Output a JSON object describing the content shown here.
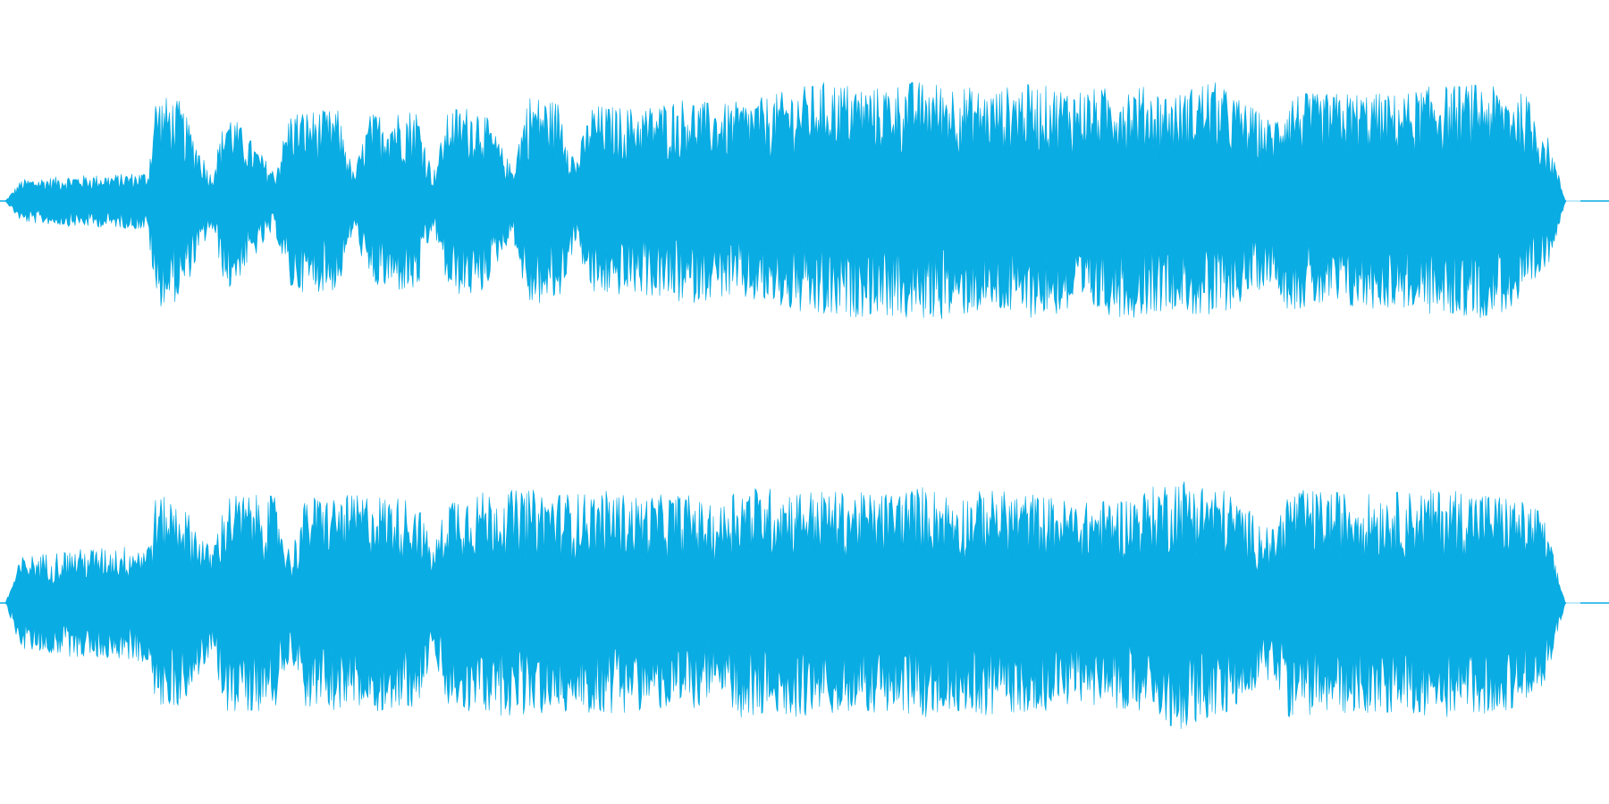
{
  "waveform": {
    "color": "#09ACE3",
    "background": "#FFFFFF",
    "channels": [
      {
        "name": "top",
        "envelope": [
          [
            0.0,
            0.0
          ],
          [
            0.01,
            0.16
          ],
          [
            0.04,
            0.19
          ],
          [
            0.07,
            0.2
          ],
          [
            0.09,
            0.22
          ],
          [
            0.095,
            0.8
          ],
          [
            0.11,
            0.75
          ],
          [
            0.13,
            0.2
          ],
          [
            0.14,
            0.7
          ],
          [
            0.17,
            0.22
          ],
          [
            0.18,
            0.68
          ],
          [
            0.21,
            0.68
          ],
          [
            0.22,
            0.2
          ],
          [
            0.23,
            0.65
          ],
          [
            0.26,
            0.7
          ],
          [
            0.27,
            0.2
          ],
          [
            0.28,
            0.7
          ],
          [
            0.3,
            0.72
          ],
          [
            0.32,
            0.25
          ],
          [
            0.33,
            0.8
          ],
          [
            0.35,
            0.75
          ],
          [
            0.36,
            0.3
          ],
          [
            0.37,
            0.72
          ],
          [
            0.4,
            0.7
          ],
          [
            0.43,
            0.78
          ],
          [
            0.45,
            0.72
          ],
          [
            0.48,
            0.78
          ],
          [
            0.5,
            0.85
          ],
          [
            0.52,
            0.9
          ],
          [
            0.55,
            0.85
          ],
          [
            0.57,
            0.9
          ],
          [
            0.6,
            0.88
          ],
          [
            0.62,
            0.82
          ],
          [
            0.64,
            0.88
          ],
          [
            0.66,
            0.86
          ],
          [
            0.69,
            0.84
          ],
          [
            0.71,
            0.88
          ],
          [
            0.74,
            0.8
          ],
          [
            0.76,
            0.92
          ],
          [
            0.8,
            0.6
          ],
          [
            0.81,
            0.82
          ],
          [
            0.83,
            0.8
          ],
          [
            0.85,
            0.82
          ],
          [
            0.88,
            0.8
          ],
          [
            0.9,
            0.86
          ],
          [
            0.93,
            0.88
          ],
          [
            0.96,
            0.8
          ],
          [
            0.975,
            0.45
          ],
          [
            0.985,
            0.0
          ],
          [
            1.0,
            0.0
          ]
        ]
      },
      {
        "name": "bottom",
        "envelope": [
          [
            0.0,
            0.0
          ],
          [
            0.01,
            0.35
          ],
          [
            0.04,
            0.4
          ],
          [
            0.07,
            0.42
          ],
          [
            0.09,
            0.45
          ],
          [
            0.095,
            0.8
          ],
          [
            0.11,
            0.78
          ],
          [
            0.13,
            0.4
          ],
          [
            0.14,
            0.82
          ],
          [
            0.17,
            0.8
          ],
          [
            0.18,
            0.38
          ],
          [
            0.19,
            0.8
          ],
          [
            0.21,
            0.8
          ],
          [
            0.23,
            0.82
          ],
          [
            0.26,
            0.78
          ],
          [
            0.27,
            0.4
          ],
          [
            0.28,
            0.82
          ],
          [
            0.31,
            0.84
          ],
          [
            0.33,
            0.85
          ],
          [
            0.36,
            0.82
          ],
          [
            0.38,
            0.84
          ],
          [
            0.4,
            0.8
          ],
          [
            0.43,
            0.82
          ],
          [
            0.45,
            0.7
          ],
          [
            0.46,
            0.88
          ],
          [
            0.49,
            0.86
          ],
          [
            0.52,
            0.84
          ],
          [
            0.55,
            0.82
          ],
          [
            0.58,
            0.88
          ],
          [
            0.6,
            0.8
          ],
          [
            0.62,
            0.85
          ],
          [
            0.65,
            0.82
          ],
          [
            0.68,
            0.75
          ],
          [
            0.71,
            0.8
          ],
          [
            0.74,
            0.95
          ],
          [
            0.77,
            0.85
          ],
          [
            0.8,
            0.55
          ],
          [
            0.81,
            0.85
          ],
          [
            0.83,
            0.84
          ],
          [
            0.86,
            0.82
          ],
          [
            0.89,
            0.84
          ],
          [
            0.92,
            0.86
          ],
          [
            0.95,
            0.8
          ],
          [
            0.97,
            0.7
          ],
          [
            0.985,
            0.0
          ],
          [
            1.0,
            0.0
          ]
        ]
      }
    ]
  }
}
